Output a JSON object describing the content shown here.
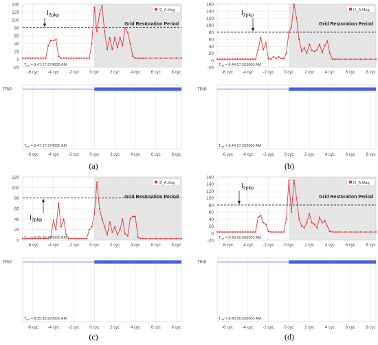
{
  "panels": [
    {
      "caption": "(a)",
      "chart_data": {
        "type": "line",
        "series": [
          {
            "name": "I2_A.Mag",
            "x": [
              -7,
              -6.75,
              -6.5,
              -6.25,
              -6,
              -5.75,
              -5.5,
              -5.25,
              -5,
              -4.75,
              -4.5,
              -4.25,
              -4,
              -3.75,
              -3.5,
              -3.25,
              -3,
              -2.75,
              -2.5,
              -2.25,
              -2,
              -1.75,
              -1.5,
              -1.25,
              -1,
              -0.75,
              -0.5,
              -0.25,
              0,
              0.25,
              0.5,
              0.75,
              1,
              1.25,
              1.5,
              1.75,
              2,
              2.25,
              2.5,
              2.75,
              3,
              3.25,
              3.5,
              3.75,
              4,
              4.25,
              4.5,
              4.75,
              5,
              5.5,
              6,
              6.5,
              7,
              7.5,
              8,
              8.5
            ],
            "values": [
              3,
              3,
              3,
              3,
              3,
              3,
              3,
              3,
              3,
              3,
              35,
              48,
              48,
              50,
              8,
              3,
              3,
              3,
              3,
              3,
              3,
              3,
              3,
              3,
              3,
              3,
              3,
              40,
              132,
              70,
              115,
              136,
              70,
              25,
              55,
              25,
              55,
              30,
              55,
              35,
              80,
              68,
              40,
              8,
              3,
              3,
              3,
              3,
              3,
              3,
              3,
              3,
              3,
              3,
              3,
              3
            ]
          }
        ],
        "xticks": [
          "-6 cyc",
          "-4 cyc",
          "-2 cyc",
          "0 cyc",
          "2 cyc",
          "4 cyc",
          "6 cyc",
          "8 cyc"
        ],
        "xtick_values": [
          -6,
          -4,
          -2,
          0,
          2,
          4,
          6,
          8
        ],
        "yticks": [
          -20,
          0,
          20,
          40,
          60,
          80,
          100,
          120,
          140
        ],
        "ylim": [
          -20,
          140
        ],
        "xlim": [
          -7,
          8.5
        ],
        "threshold": 80,
        "shaded_from": 0,
        "shaded_label": "Grid Restoration Period",
        "peak_label_main": "I",
        "peak_label_sub": "2pkp",
        "trip_start": 0,
        "tref_top": "T",
        "tref_sub": "ref",
        "tref_text": " = 8:47:27.974000 AM",
        "tref_text_bottom": " = 8:47:27.974000 AM",
        "trip_label": "TRIP"
      }
    },
    {
      "caption": "(b)",
      "chart_data": {
        "type": "line",
        "series": [
          {
            "name": "I2_A.Mag",
            "x": [
              -7,
              -6.75,
              -6.5,
              -6.25,
              -6,
              -5.75,
              -5.5,
              -5.25,
              -5,
              -4.75,
              -4.5,
              -4.25,
              -4,
              -3.75,
              -3.5,
              -3.25,
              -3,
              -2.75,
              -2.5,
              -2.25,
              -2,
              -1.75,
              -1.5,
              -1.25,
              -1,
              -0.75,
              -0.5,
              -0.25,
              0,
              0.25,
              0.5,
              0.75,
              1,
              1.25,
              1.5,
              1.75,
              2,
              2.25,
              2.5,
              2.75,
              3,
              3.25,
              3.5,
              3.75,
              4,
              4.25,
              4.5,
              4.75,
              5,
              5.5,
              6,
              6.5,
              7,
              7.5,
              8,
              8.5
            ],
            "values": [
              3,
              3,
              3,
              3,
              3,
              3,
              3,
              3,
              3,
              3,
              3,
              3,
              3,
              3,
              3,
              3,
              30,
              65,
              30,
              50,
              5,
              3,
              10,
              5,
              10,
              5,
              5,
              20,
              80,
              95,
              160,
              120,
              60,
              25,
              35,
              20,
              45,
              28,
              25,
              30,
              45,
              22,
              42,
              55,
              20,
              3,
              3,
              3,
              3,
              3,
              3,
              3,
              3,
              3,
              3,
              3
            ]
          }
        ],
        "xticks": [
          "-6 cyc",
          "-4 cyc",
          "-2 cyc",
          "0 cyc",
          "2 cyc",
          "4 cyc",
          "6 cyc",
          "8 cyc"
        ],
        "xtick_values": [
          -6,
          -4,
          -2,
          0,
          2,
          4,
          6,
          8
        ],
        "yticks": [
          -20,
          0,
          20,
          40,
          60,
          80,
          100,
          120,
          140,
          160
        ],
        "ylim": [
          -20,
          160
        ],
        "xlim": [
          -7,
          8.5
        ],
        "threshold": 80,
        "shaded_from": 0,
        "shaded_label": "Grid Restoration Period",
        "peak_label_main": "I",
        "peak_label_sub": "2pkp",
        "trip_start": 0,
        "tref_top": "T",
        "tref_sub": "ref",
        "tref_text": " = 8:44:57.552000 AM",
        "tref_text_bottom": " = 8:44:57.552000 AM",
        "trip_label": "TRIP"
      }
    },
    {
      "caption": "(c)",
      "chart_data": {
        "type": "line",
        "series": [
          {
            "name": "I2_A.Mag",
            "x": [
              -7,
              -6.75,
              -6.5,
              -6.25,
              -6,
              -5.75,
              -5.5,
              -5.25,
              -5,
              -4.75,
              -4.5,
              -4.25,
              -4,
              -3.75,
              -3.5,
              -3.25,
              -3,
              -2.75,
              -2.5,
              -2.25,
              -2,
              -1.75,
              -1.5,
              -1.25,
              -1,
              -0.75,
              -0.5,
              -0.25,
              0,
              0.25,
              0.5,
              0.75,
              1,
              1.25,
              1.5,
              1.75,
              2,
              2.25,
              2.5,
              2.75,
              3,
              3.25,
              3.5,
              3.75,
              4,
              4.25,
              4.5,
              4.75,
              5,
              5.5,
              6,
              6.5,
              7,
              7.5,
              8,
              8.5
            ],
            "values": [
              3,
              3,
              3,
              3,
              3,
              3,
              3,
              3,
              3,
              3,
              3,
              5,
              38,
              20,
              70,
              25,
              40,
              10,
              3,
              3,
              3,
              3,
              3,
              3,
              3,
              3,
              20,
              25,
              50,
              110,
              60,
              40,
              25,
              10,
              35,
              15,
              25,
              10,
              20,
              40,
              12,
              8,
              40,
              45,
              45,
              5,
              3,
              3,
              3,
              3,
              3,
              3,
              3,
              3,
              3,
              3
            ]
          }
        ],
        "xticks": [
          "-6 cyc",
          "-4 cyc",
          "-2 cyc",
          "0 cyc",
          "2 cyc",
          "4 cyc",
          "6 cyc",
          "8 cyc"
        ],
        "xtick_values": [
          -6,
          -4,
          -2,
          0,
          2,
          4,
          6,
          8
        ],
        "yticks": [
          0,
          20,
          40,
          60,
          80,
          100,
          120
        ],
        "ylim": [
          0,
          120
        ],
        "xlim": [
          -7,
          8.5
        ],
        "threshold": 80,
        "shaded_from": 0,
        "shaded_label": "Grid Restoration Period",
        "peak_label_main": "I",
        "peak_label_sub": "2pkp",
        "trip_start": 0,
        "tref_top": "T",
        "tref_sub": "ref",
        "tref_text": " = 8:35:36.970000 AM",
        "tref_text_bottom": " = 8:35:36.970000 AM",
        "trip_label": "TRIP"
      }
    },
    {
      "caption": "(d)",
      "chart_data": {
        "type": "line",
        "series": [
          {
            "name": "I2_A.Mag",
            "x": [
              -7,
              -6.75,
              -6.5,
              -6.25,
              -6,
              -5.75,
              -5.5,
              -5.25,
              -5,
              -4.75,
              -4.5,
              -4.25,
              -4,
              -3.75,
              -3.5,
              -3.25,
              -3,
              -2.75,
              -2.5,
              -2.25,
              -2,
              -1.75,
              -1.5,
              -1.25,
              -1,
              -0.75,
              -0.5,
              -0.25,
              0,
              0.25,
              0.5,
              0.75,
              1,
              1.25,
              1.5,
              1.75,
              2,
              2.25,
              2.5,
              2.75,
              3,
              3.25,
              3.5,
              3.75,
              4,
              4.25,
              4.5,
              4.75,
              5,
              5.5,
              6,
              6.5,
              7,
              7.5,
              8,
              8.5
            ],
            "values": [
              3,
              3,
              3,
              3,
              3,
              3,
              3,
              3,
              3,
              3,
              3,
              3,
              3,
              3,
              3,
              3,
              45,
              50,
              30,
              25,
              5,
              3,
              3,
              3,
              3,
              3,
              3,
              40,
              150,
              60,
              150,
              100,
              40,
              20,
              15,
              30,
              55,
              30,
              25,
              15,
              45,
              30,
              35,
              20,
              5,
              3,
              3,
              3,
              3,
              3,
              3,
              3,
              3,
              3,
              3,
              3
            ]
          }
        ],
        "xticks": [
          "-6 cyc",
          "-4 cyc",
          "-2 cyc",
          "0 cyc",
          "2 cyc",
          "4 cyc",
          "6 cyc",
          "8 cyc"
        ],
        "xtick_values": [
          -6,
          -4,
          -2,
          0,
          2,
          4,
          6,
          8
        ],
        "yticks": [
          -20,
          0,
          20,
          40,
          60,
          80,
          100,
          120,
          140,
          160
        ],
        "ylim": [
          -20,
          160
        ],
        "xlim": [
          -7,
          8.5
        ],
        "threshold": 80,
        "shaded_from": 0,
        "shaded_label": "Grid Restoration Period",
        "peak_label_main": "I",
        "peak_label_sub": "2pkp",
        "trip_start": 0,
        "tref_top": "T",
        "tref_sub": "ref",
        "tref_text": " = 8:43:00.650000 AM",
        "tref_text_bottom": " = 8:43:00.650000 AM",
        "trip_label": "TRIP"
      }
    }
  ],
  "colors": {
    "series": "#e8383b",
    "trip_on": "#4a5fe0",
    "trip_off": "#9aa6ee",
    "shade": "#e6e6e6",
    "grid": "#e0e0e0",
    "threshold": "#222222",
    "text": "#444444"
  }
}
